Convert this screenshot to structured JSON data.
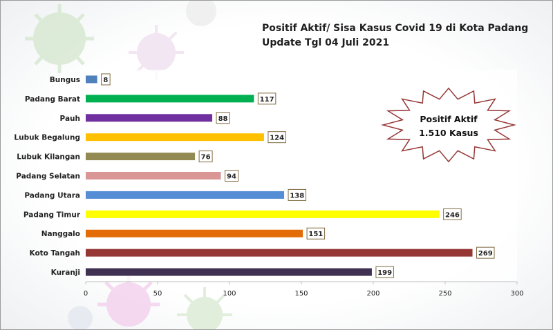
{
  "title_line1": "Positif Aktif/ Sisa Kasus Covid 19 di Kota Padang",
  "title_line2": "Update Tgl 04 Juli 2021",
  "callout": {
    "line1": "Positif Aktif",
    "line2": "1.510 Kasus"
  },
  "chart_data": {
    "type": "bar",
    "orientation": "horizontal",
    "title": "Positif Aktif/ Sisa Kasus Covid 19 di Kota Padang",
    "subtitle": "Update Tgl 04 Juli 2021",
    "xlabel": "",
    "ylabel": "",
    "xlim": [
      0,
      300
    ],
    "ticks": [
      0,
      50,
      100,
      150,
      200,
      250,
      300
    ],
    "grid": false,
    "categories": [
      "Bungus",
      "Padang Barat",
      "Pauh",
      "Lubuk Begalung",
      "Lubuk Kilangan",
      "Padang Selatan",
      "Padang Utara",
      "Padang Timur",
      "Nanggalo",
      "Koto Tangah",
      "Kuranji"
    ],
    "values": [
      8,
      117,
      88,
      124,
      76,
      94,
      138,
      246,
      151,
      269,
      199
    ],
    "colors": [
      "#4f81bd",
      "#00b050",
      "#7030a0",
      "#ffc000",
      "#938953",
      "#da9694",
      "#558ed5",
      "#ffff00",
      "#e36c09",
      "#953735",
      "#403152"
    ]
  }
}
